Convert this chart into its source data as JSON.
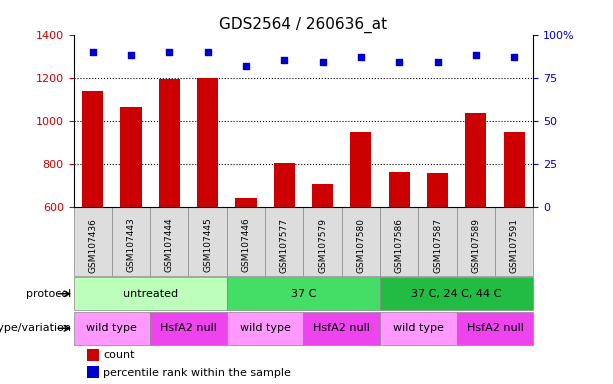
{
  "title": "GDS2564 / 260636_at",
  "samples": [
    "GSM107436",
    "GSM107443",
    "GSM107444",
    "GSM107445",
    "GSM107446",
    "GSM107577",
    "GSM107579",
    "GSM107580",
    "GSM107586",
    "GSM107587",
    "GSM107589",
    "GSM107591"
  ],
  "counts": [
    1140,
    1065,
    1195,
    1200,
    645,
    805,
    710,
    950,
    765,
    760,
    1035,
    950
  ],
  "percentiles": [
    90,
    88,
    90,
    90,
    82,
    85,
    84,
    87,
    84,
    84,
    88,
    87
  ],
  "ylim_left": [
    600,
    1400
  ],
  "ylim_right": [
    0,
    100
  ],
  "yticks_left": [
    600,
    800,
    1000,
    1200,
    1400
  ],
  "yticks_right": [
    0,
    25,
    50,
    75,
    100
  ],
  "ytick_right_labels": [
    "0",
    "25",
    "50",
    "75",
    "100%"
  ],
  "bar_color": "#cc0000",
  "dot_color": "#0000cc",
  "grid_color": "#000000",
  "protocol_groups": [
    {
      "label": "untreated",
      "start": 0,
      "end": 4,
      "color": "#bbffbb"
    },
    {
      "label": "37 C",
      "start": 4,
      "end": 8,
      "color": "#44dd66"
    },
    {
      "label": "37 C, 24 C, 44 C",
      "start": 8,
      "end": 12,
      "color": "#22bb44"
    }
  ],
  "genotype_groups": [
    {
      "label": "wild type",
      "start": 0,
      "end": 2,
      "color": "#ff99ff"
    },
    {
      "label": "HsfA2 null",
      "start": 2,
      "end": 4,
      "color": "#ee55ee"
    },
    {
      "label": "wild type",
      "start": 4,
      "end": 6,
      "color": "#ff99ff"
    },
    {
      "label": "HsfA2 null",
      "start": 6,
      "end": 8,
      "color": "#ee55ee"
    },
    {
      "label": "wild type",
      "start": 8,
      "end": 10,
      "color": "#ff99ff"
    },
    {
      "label": "HsfA2 null",
      "start": 10,
      "end": 12,
      "color": "#ee55ee"
    }
  ],
  "protocol_label": "protocol",
  "genotype_label": "genotype/variation",
  "legend_count": "count",
  "legend_percentile": "percentile rank within the sample",
  "bar_width": 0.55,
  "tick_label_color_left": "#cc0000",
  "tick_label_color_right": "#0000cc",
  "background_color": "#ffffff",
  "plot_bg_color": "#ffffff",
  "sample_box_color": "#dddddd",
  "sample_box_edge": "#888888"
}
